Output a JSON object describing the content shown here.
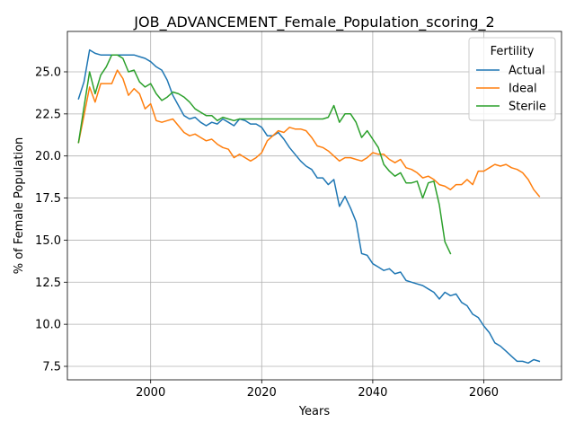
{
  "chart_data": {
    "type": "line",
    "title": "JOB_ADVANCEMENT_Female_Population_scoring_2",
    "xlabel": "Years",
    "ylabel": "% of Female Population",
    "xlim": [
      1985,
      2074
    ],
    "ylim": [
      6.7,
      27.4
    ],
    "xticks": [
      2000,
      2020,
      2040,
      2060
    ],
    "yticks": [
      7.5,
      10.0,
      12.5,
      15.0,
      17.5,
      20.0,
      22.5,
      25.0
    ],
    "grid": true,
    "legend": {
      "title": "Fertility",
      "placement": "top-right"
    },
    "colors": {
      "Actual": "#1f77b4",
      "Ideal": "#ff7f0e",
      "Sterile": "#2ca02c"
    },
    "series": [
      {
        "name": "Actual",
        "x": [
          1987,
          1988,
          1989,
          1990,
          1991,
          1992,
          1993,
          1994,
          1995,
          1996,
          1997,
          1998,
          1999,
          2000,
          2001,
          2002,
          2003,
          2004,
          2005,
          2006,
          2007,
          2008,
          2009,
          2010,
          2011,
          2012,
          2013,
          2014,
          2015,
          2016,
          2017,
          2018,
          2019,
          2020,
          2021,
          2022,
          2023,
          2024,
          2025,
          2026,
          2027,
          2028,
          2029,
          2030,
          2031,
          2032,
          2033,
          2034,
          2035,
          2036,
          2037,
          2038,
          2039,
          2040,
          2041,
          2042,
          2043,
          2044,
          2045,
          2046,
          2047,
          2048,
          2049,
          2050,
          2051,
          2052,
          2053,
          2054,
          2055,
          2056,
          2057,
          2058,
          2059,
          2060,
          2061,
          2062,
          2063,
          2064,
          2065,
          2066,
          2067,
          2068,
          2069,
          2070
        ],
        "values": [
          23.4,
          24.4,
          26.3,
          26.1,
          26.0,
          26.0,
          26.0,
          26.0,
          26.0,
          26.0,
          26.0,
          25.9,
          25.8,
          25.6,
          25.3,
          25.1,
          24.5,
          23.6,
          23.0,
          22.4,
          22.2,
          22.3,
          22.0,
          21.8,
          22.0,
          21.9,
          22.2,
          22.0,
          21.8,
          22.2,
          22.1,
          21.9,
          21.9,
          21.7,
          21.2,
          21.2,
          21.4,
          21.0,
          20.5,
          20.1,
          19.7,
          19.4,
          19.2,
          18.7,
          18.7,
          18.3,
          18.6,
          17.0,
          17.6,
          16.9,
          16.1,
          14.2,
          14.1,
          13.6,
          13.4,
          13.2,
          13.3,
          13.0,
          13.1,
          12.6,
          12.5,
          12.4,
          12.3,
          12.1,
          11.9,
          11.5,
          11.9,
          11.7,
          11.8,
          11.3,
          11.1,
          10.6,
          10.4,
          9.9,
          9.5,
          8.9,
          8.7,
          8.4,
          8.1,
          7.8,
          7.8,
          7.7,
          7.9,
          7.8
        ]
      },
      {
        "name": "Ideal",
        "x": [
          1987,
          1988,
          1989,
          1990,
          1991,
          1992,
          1993,
          1994,
          1995,
          1996,
          1997,
          1998,
          1999,
          2000,
          2001,
          2002,
          2003,
          2004,
          2005,
          2006,
          2007,
          2008,
          2009,
          2010,
          2011,
          2012,
          2013,
          2014,
          2015,
          2016,
          2017,
          2018,
          2019,
          2020,
          2021,
          2022,
          2023,
          2024,
          2025,
          2026,
          2027,
          2028,
          2029,
          2030,
          2031,
          2032,
          2033,
          2034,
          2035,
          2036,
          2037,
          2038,
          2039,
          2040,
          2041,
          2042,
          2043,
          2044,
          2045,
          2046,
          2047,
          2048,
          2049,
          2050,
          2051,
          2052,
          2053,
          2054,
          2055,
          2056,
          2057,
          2058,
          2059,
          2060,
          2061,
          2062,
          2063,
          2064,
          2065,
          2066,
          2067,
          2068,
          2069,
          2070
        ],
        "values": [
          20.8,
          22.4,
          24.1,
          23.2,
          24.3,
          24.3,
          24.3,
          25.1,
          24.6,
          23.6,
          24.0,
          23.7,
          22.8,
          23.1,
          22.1,
          22.0,
          22.1,
          22.2,
          21.8,
          21.4,
          21.2,
          21.3,
          21.1,
          20.9,
          21.0,
          20.7,
          20.5,
          20.4,
          19.9,
          20.1,
          19.9,
          19.7,
          19.9,
          20.2,
          20.9,
          21.2,
          21.5,
          21.4,
          21.7,
          21.6,
          21.6,
          21.5,
          21.1,
          20.6,
          20.5,
          20.3,
          20.0,
          19.7,
          19.9,
          19.9,
          19.8,
          19.7,
          19.9,
          20.2,
          20.1,
          20.1,
          19.8,
          19.6,
          19.8,
          19.3,
          19.2,
          19.0,
          18.7,
          18.8,
          18.6,
          18.3,
          18.2,
          18.0,
          18.3,
          18.3,
          18.6,
          18.3,
          19.1,
          19.1,
          19.3,
          19.5,
          19.4,
          19.5,
          19.3,
          19.2,
          19.0,
          18.6,
          18.0,
          17.6
        ]
      },
      {
        "name": "Sterile",
        "x": [
          1987,
          1988,
          1989,
          1990,
          1991,
          1992,
          1993,
          1994,
          1995,
          1996,
          1997,
          1998,
          1999,
          2000,
          2001,
          2002,
          2003,
          2004,
          2005,
          2006,
          2007,
          2008,
          2009,
          2010,
          2011,
          2012,
          2013,
          2014,
          2015,
          2016,
          2017,
          2018,
          2019,
          2020,
          2021,
          2022,
          2023,
          2024,
          2025,
          2026,
          2027,
          2028,
          2029,
          2030,
          2031,
          2032,
          2033,
          2034,
          2035,
          2036,
          2037,
          2038,
          2039,
          2040,
          2041,
          2042,
          2043,
          2044,
          2045,
          2046,
          2047,
          2048,
          2049,
          2050,
          2051,
          2052,
          2053,
          2054
        ],
        "values": [
          20.8,
          22.9,
          25.0,
          23.7,
          24.8,
          25.3,
          26.0,
          26.0,
          25.8,
          25.0,
          25.1,
          24.4,
          24.1,
          24.3,
          23.7,
          23.3,
          23.5,
          23.8,
          23.7,
          23.5,
          23.2,
          22.8,
          22.6,
          22.4,
          22.4,
          22.1,
          22.3,
          22.2,
          22.1,
          22.2,
          22.2,
          22.2,
          22.2,
          22.2,
          22.2,
          22.2,
          22.2,
          22.2,
          22.2,
          22.2,
          22.2,
          22.2,
          22.2,
          22.2,
          22.2,
          22.3,
          23.0,
          22.0,
          22.5,
          22.5,
          22.0,
          21.1,
          21.5,
          21.0,
          20.5,
          19.5,
          19.1,
          18.8,
          19.0,
          18.4,
          18.4,
          18.5,
          17.5,
          18.4,
          18.5,
          17.1,
          14.9,
          14.2
        ]
      }
    ]
  }
}
